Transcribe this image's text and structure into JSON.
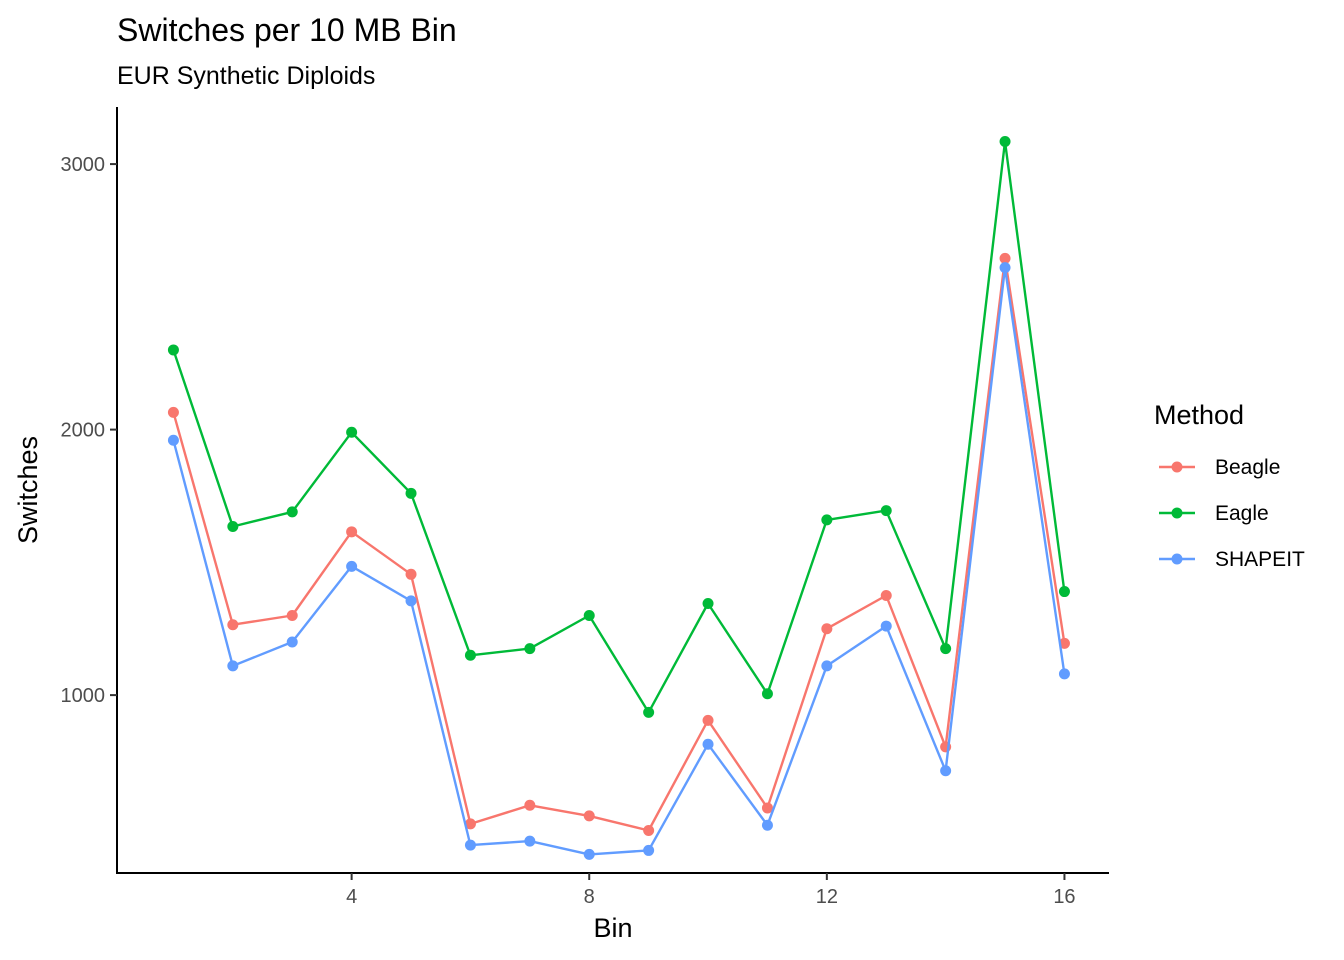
{
  "chart_data": {
    "type": "line",
    "title": "Switches per 10 MB Bin",
    "subtitle": "EUR Synthetic Diploids",
    "xlabel": "Bin",
    "ylabel": "Switches",
    "x": [
      1,
      2,
      3,
      4,
      5,
      6,
      7,
      8,
      9,
      10,
      11,
      12,
      13,
      14,
      15,
      16
    ],
    "xticks": [
      4,
      8,
      12,
      16
    ],
    "yticks": [
      1000,
      2000,
      3000
    ],
    "xlim": [
      0.05,
      16.75
    ],
    "ylim": [
      330,
      3215
    ],
    "grid": false,
    "legend": {
      "title": "Method",
      "position": "right"
    },
    "series": [
      {
        "name": "Beagle",
        "color": "#F8766D",
        "values": [
          2065,
          1265,
          1300,
          1615,
          1455,
          515,
          585,
          545,
          490,
          905,
          575,
          1250,
          1375,
          805,
          2645,
          1195
        ]
      },
      {
        "name": "Eagle",
        "color": "#00BA38",
        "values": [
          2300,
          1635,
          1690,
          1990,
          1760,
          1150,
          1175,
          1300,
          935,
          1345,
          1005,
          1660,
          1695,
          1175,
          3085,
          1390
        ]
      },
      {
        "name": "SHAPEIT",
        "color": "#619CFF",
        "values": [
          1960,
          1110,
          1200,
          1485,
          1355,
          435,
          450,
          400,
          415,
          815,
          510,
          1110,
          1260,
          715,
          2610,
          1080
        ]
      }
    ]
  }
}
